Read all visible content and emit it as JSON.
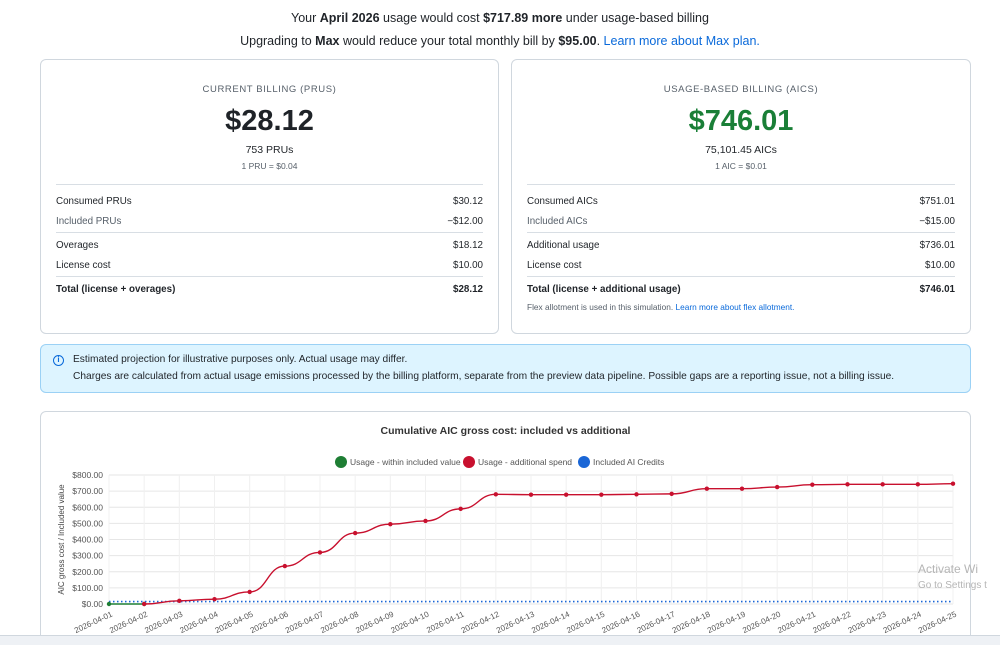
{
  "summary": {
    "line1_prefix": "Your ",
    "line1_month": "April 2026",
    "line1_mid": " usage would cost ",
    "line1_amount": "$717.89 more",
    "line1_suffix": " under usage-based billing",
    "line2_prefix": "Upgrading to ",
    "line2_plan": "Max",
    "line2_mid": " would reduce your total monthly bill by ",
    "line2_amount": "$95.00",
    "line2_after": ". ",
    "line2_link": "Learn more about Max plan."
  },
  "current": {
    "title": "CURRENT BILLING (PRUS)",
    "total": "$28.12",
    "units": "753 PRUs",
    "rate": "1 PRU = $0.04",
    "rows": [
      {
        "label": "Consumed PRUs",
        "value": "$30.12"
      },
      {
        "label": "Included PRUs",
        "value": "−$12.00"
      },
      {
        "label": "Overages",
        "value": "$18.12"
      },
      {
        "label": "License cost",
        "value": "$10.00"
      },
      {
        "label": "Total (license + overages)",
        "value": "$28.12"
      }
    ]
  },
  "usage": {
    "title": "USAGE-BASED BILLING (AICS)",
    "total": "$746.01",
    "units": "75,101.45 AICs",
    "rate": "1 AIC = $0.01",
    "rows": [
      {
        "label": "Consumed AICs",
        "value": "$751.01"
      },
      {
        "label": "Included AICs",
        "value": "−$15.00"
      },
      {
        "label": "Additional usage",
        "value": "$736.01"
      },
      {
        "label": "License cost",
        "value": "$10.00"
      },
      {
        "label": "Total (license + additional usage)",
        "value": "$746.01"
      }
    ],
    "note_text": "Flex allotment is used in this simulation. ",
    "note_link": "Learn more about flex allotment."
  },
  "info": {
    "icon": "info-icon",
    "line1": "Estimated projection for illustrative purposes only. Actual usage may differ.",
    "line2": "Charges are calculated from actual usage emissions processed by the billing platform, separate from the preview data pipeline. Possible gaps are a reporting issue, not a billing issue."
  },
  "colors": {
    "green_total": "#1a7f37",
    "link": "#0969da",
    "series_within": "#1e7e34",
    "series_additional": "#c8102e",
    "series_credits": "#1a66d6"
  },
  "chart_data": {
    "type": "line",
    "title": "Cumulative AIC gross cost: included vs additional",
    "ylabel": "AIC gross cost / Included value",
    "xlabel": "",
    "ylim": [
      0,
      800
    ],
    "yticks": [
      "$0.00",
      "$100.00",
      "$200.00",
      "$300.00",
      "$400.00",
      "$500.00",
      "$600.00",
      "$700.00",
      "$800.00"
    ],
    "ytick_values": [
      0,
      100,
      200,
      300,
      400,
      500,
      600,
      700,
      800
    ],
    "legend_position": "top",
    "grid": true,
    "x": [
      "2026-04-01",
      "2026-04-02",
      "2026-04-03",
      "2026-04-04",
      "2026-04-05",
      "2026-04-06",
      "2026-04-07",
      "2026-04-08",
      "2026-04-09",
      "2026-04-10",
      "2026-04-11",
      "2026-04-12",
      "2026-04-13",
      "2026-04-14",
      "2026-04-15",
      "2026-04-16",
      "2026-04-17",
      "2026-04-18",
      "2026-04-19",
      "2026-04-20",
      "2026-04-21",
      "2026-04-22",
      "2026-04-23",
      "2026-04-24",
      "2026-04-25"
    ],
    "series": [
      {
        "name": "Usage - within included value",
        "x": [
          "2026-04-01",
          "2026-04-02"
        ],
        "values": [
          0,
          0
        ]
      },
      {
        "name": "Usage - additional spend",
        "x": [
          "2026-04-02",
          "2026-04-03",
          "2026-04-04",
          "2026-04-05",
          "2026-04-06",
          "2026-04-07",
          "2026-04-08",
          "2026-04-09",
          "2026-04-10",
          "2026-04-11",
          "2026-04-12",
          "2026-04-13",
          "2026-04-14",
          "2026-04-15",
          "2026-04-16",
          "2026-04-17",
          "2026-04-18",
          "2026-04-19",
          "2026-04-20",
          "2026-04-21",
          "2026-04-22",
          "2026-04-23",
          "2026-04-24",
          "2026-04-25"
        ],
        "values": [
          0,
          20,
          30,
          75,
          235,
          320,
          440,
          495,
          515,
          590,
          680,
          678,
          678,
          678,
          680,
          683,
          715,
          715,
          725,
          740,
          742,
          742,
          742,
          746
        ]
      },
      {
        "name": "Included AI Credits",
        "x": [
          "2026-04-01",
          "2026-04-25"
        ],
        "values": [
          15,
          15
        ]
      }
    ]
  },
  "watermark": {
    "line1": "Activate Wi",
    "line2": "Go to Settings t"
  }
}
